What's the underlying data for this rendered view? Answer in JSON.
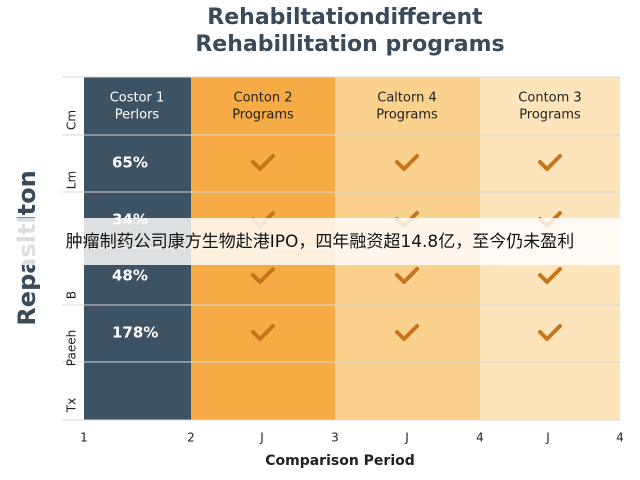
{
  "title": [
    "Rehabiltationdifferent",
    "Rehabillitation programs"
  ],
  "y_axis_label": "Repasltlton",
  "columns": [
    [
      "Costor 1",
      "Perlors"
    ],
    [
      "Conton 2",
      "Programs"
    ],
    [
      "Caltorn 4",
      "Programs"
    ],
    [
      "Contom 3",
      "Programs"
    ]
  ],
  "row_labels": [
    "Cm",
    "Lm",
    "B",
    "Paeeh",
    "Tx"
  ],
  "first_column_values": [
    "65%",
    "34%",
    "48%",
    "178%"
  ],
  "x_axis": {
    "ticks": [
      "1",
      "2",
      "J",
      "3",
      "J",
      "4",
      "J",
      "4"
    ],
    "label": "Comparison Period"
  },
  "caption": "肿瘤制药公司康方生物赴港IPO，四年融资超14.8亿，至今仍未盈利"
}
